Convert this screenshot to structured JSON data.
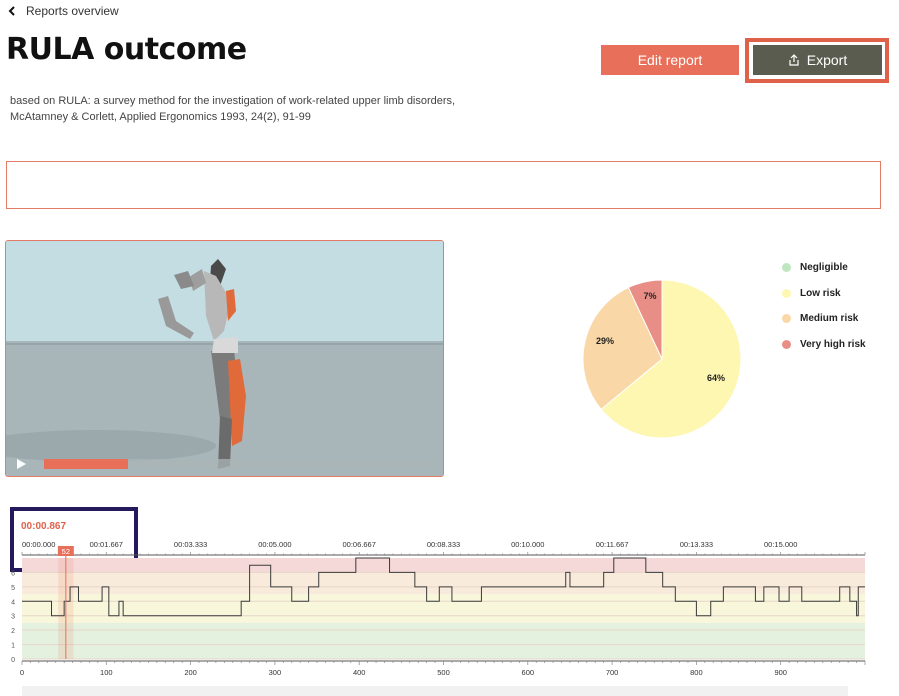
{
  "nav": {
    "back_label": "Reports overview"
  },
  "page": {
    "title": "RULA outcome",
    "subtitle": "based on RULA: a survey method for the investigation of work-related upper limb disorders, McAtamney & Corlett, Applied Ergonomics 1993, 24(2), 91-99"
  },
  "actions": {
    "edit_label": "Edit report",
    "export_label": "Export"
  },
  "notes": {
    "value": ""
  },
  "video": {
    "progress": 0.053
  },
  "colors": {
    "accent": "#e8705a",
    "export_bg": "#5b5c50",
    "negligible": "#bfe6bf",
    "low": "#fef7b2",
    "medium": "#f9d7a6",
    "very_high": "#e88e87"
  },
  "chart_data": [
    {
      "type": "pie",
      "categories": [
        "Negligible",
        "Low risk",
        "Medium risk",
        "Very high risk"
      ],
      "values": [
        0,
        64,
        29,
        7
      ],
      "labels": [
        "",
        "64%",
        "29%",
        "7%"
      ],
      "legend": "right"
    },
    {
      "type": "line",
      "current_time": "00:00.867",
      "cursor_frame": 52,
      "cursor_label": "52",
      "time_ticks": [
        "00:00.000",
        "00:01.667",
        "00:03.333",
        "00:05.000",
        "00:06.667",
        "00:08.333",
        "00:10.000",
        "00:11.667",
        "00:13.333",
        "00:15.000"
      ],
      "frame_ticks": [
        0,
        100,
        200,
        300,
        400,
        500,
        600,
        700,
        800,
        900
      ],
      "y_ticks": [
        0,
        1,
        2,
        3,
        4,
        5,
        6
      ],
      "xlim": [
        0,
        1000
      ],
      "ylim": [
        0,
        7
      ],
      "steps": [
        [
          0,
          4
        ],
        [
          35,
          3
        ],
        [
          50,
          4
        ],
        [
          57,
          5
        ],
        [
          67,
          4
        ],
        [
          95,
          5
        ],
        [
          103,
          3
        ],
        [
          115,
          4
        ],
        [
          120,
          3
        ],
        [
          252,
          3
        ],
        [
          260,
          4
        ],
        [
          270,
          6.5
        ],
        [
          295,
          5
        ],
        [
          320,
          4
        ],
        [
          340,
          5
        ],
        [
          352,
          6
        ],
        [
          396,
          7
        ],
        [
          436,
          6
        ],
        [
          466,
          5
        ],
        [
          480,
          4
        ],
        [
          495,
          5
        ],
        [
          510,
          4
        ],
        [
          536,
          4
        ],
        [
          545,
          5
        ],
        [
          645,
          6
        ],
        [
          650,
          5
        ],
        [
          690,
          6
        ],
        [
          702,
          7
        ],
        [
          740,
          6
        ],
        [
          760,
          5
        ],
        [
          775,
          4
        ],
        [
          790,
          4
        ],
        [
          800,
          3
        ],
        [
          817,
          4
        ],
        [
          832,
          5
        ],
        [
          852,
          5
        ],
        [
          870,
          4
        ],
        [
          880,
          5
        ],
        [
          898,
          4
        ],
        [
          910,
          5
        ],
        [
          925,
          4
        ],
        [
          970,
          5
        ],
        [
          982,
          4
        ],
        [
          990,
          3
        ],
        [
          992,
          5
        ],
        [
          1000,
          5
        ]
      ]
    }
  ]
}
